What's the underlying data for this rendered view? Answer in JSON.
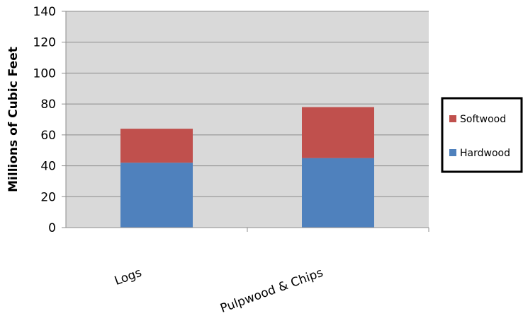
{
  "chart_data": {
    "type": "bar",
    "stacked": true,
    "categories": [
      "Logs",
      "Pulpwood & Chips"
    ],
    "series": [
      {
        "name": "Hardwood",
        "values": [
          42,
          45
        ],
        "color": "#4F81BD"
      },
      {
        "name": "Softwood",
        "values": [
          22,
          33
        ],
        "color": "#C0504D"
      }
    ],
    "ylabel": "Millions of Cubic Feet",
    "ylim": [
      0,
      140
    ],
    "yticks": [
      0,
      20,
      40,
      60,
      80,
      100,
      120,
      140
    ],
    "grid": true,
    "legend": "right",
    "plot_background": "#D9D9D9"
  }
}
